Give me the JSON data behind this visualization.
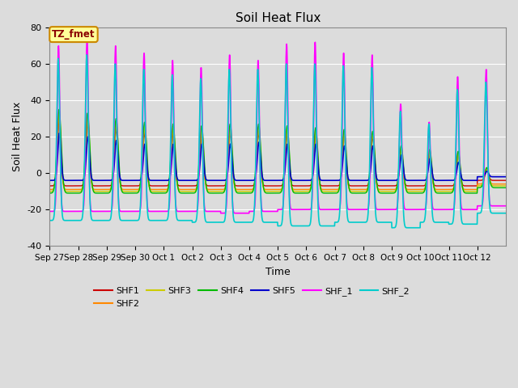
{
  "title": "Soil Heat Flux",
  "xlabel": "Time",
  "ylabel": "Soil Heat Flux",
  "ylim": [
    -40,
    80
  ],
  "annotation_text": "TZ_fmet",
  "annotation_bg": "#FFFF99",
  "annotation_border": "#CC8800",
  "plot_bg": "#DCDCDC",
  "series": {
    "SHF1": {
      "color": "#CC0000",
      "lw": 1.0
    },
    "SHF2": {
      "color": "#FF8800",
      "lw": 1.0
    },
    "SHF3": {
      "color": "#CCCC00",
      "lw": 1.0
    },
    "SHF4": {
      "color": "#00BB00",
      "lw": 1.0
    },
    "SHF5": {
      "color": "#0000CC",
      "lw": 1.2
    },
    "SHF_1": {
      "color": "#FF00FF",
      "lw": 1.2
    },
    "SHF_2": {
      "color": "#00CCCC",
      "lw": 1.2
    }
  },
  "tick_labels": [
    "Sep 27",
    "Sep 28",
    "Sep 29",
    "Sep 30",
    "Oct 1",
    "Oct 2",
    "Oct 3",
    "Oct 4",
    "Oct 5",
    "Oct 6",
    "Oct 7",
    "Oct 8",
    "Oct 9",
    "Oct 10",
    "Oct 11",
    "Oct 12"
  ],
  "n_days": 16,
  "pts_per_day": 144,
  "series_params": {
    "SHF1": {
      "peaks": [
        29,
        27,
        24,
        22,
        22,
        20,
        22,
        22,
        22,
        21,
        21,
        20,
        10,
        10,
        10,
        2
      ],
      "troughs": [
        -7,
        -7,
        -7,
        -7,
        -7,
        -7,
        -7,
        -7,
        -7,
        -7,
        -7,
        -7,
        -7,
        -7,
        -7,
        -4
      ],
      "peak_time": 0.33,
      "sigma": 0.06
    },
    "SHF2": {
      "peaks": [
        31,
        29,
        26,
        24,
        23,
        22,
        23,
        23,
        22,
        22,
        21,
        21,
        12,
        11,
        10,
        2
      ],
      "troughs": [
        -9,
        -9,
        -9,
        -9,
        -9,
        -9,
        -9,
        -9,
        -9,
        -9,
        -9,
        -9,
        -9,
        -9,
        -9,
        -6
      ],
      "peak_time": 0.33,
      "sigma": 0.065
    },
    "SHF3": {
      "peaks": [
        33,
        31,
        28,
        26,
        25,
        24,
        24,
        25,
        24,
        24,
        22,
        22,
        13,
        12,
        11,
        3
      ],
      "troughs": [
        -10,
        -10,
        -10,
        -10,
        -10,
        -10,
        -10,
        -10,
        -10,
        -10,
        -10,
        -10,
        -10,
        -10,
        -10,
        -7
      ],
      "peak_time": 0.33,
      "sigma": 0.07
    },
    "SHF4": {
      "peaks": [
        35,
        33,
        30,
        28,
        27,
        26,
        27,
        27,
        26,
        25,
        24,
        23,
        15,
        13,
        12,
        3
      ],
      "troughs": [
        -11,
        -11,
        -11,
        -11,
        -11,
        -11,
        -11,
        -11,
        -11,
        -11,
        -11,
        -11,
        -11,
        -11,
        -11,
        -8
      ],
      "peak_time": 0.33,
      "sigma": 0.075
    },
    "SHF5": {
      "peaks": [
        22,
        20,
        18,
        16,
        16,
        16,
        16,
        17,
        16,
        16,
        15,
        15,
        10,
        8,
        6,
        1
      ],
      "troughs": [
        -4,
        -4,
        -4,
        -4,
        -4,
        -4,
        -4,
        -4,
        -4,
        -4,
        -4,
        -4,
        -4,
        -4,
        -4,
        -2
      ],
      "peak_time": 0.34,
      "sigma": 0.055
    },
    "SHF_1": {
      "peaks": [
        70,
        75,
        70,
        66,
        62,
        58,
        65,
        62,
        71,
        72,
        66,
        65,
        38,
        28,
        53,
        57
      ],
      "troughs": [
        -21,
        -21,
        -21,
        -21,
        -21,
        -21,
        -22,
        -21,
        -20,
        -20,
        -20,
        -20,
        -20,
        -20,
        -20,
        -18
      ],
      "peak_time": 0.31,
      "sigma": 0.045
    },
    "SHF_2": {
      "peaks": [
        63,
        65,
        60,
        57,
        54,
        52,
        57,
        57,
        60,
        60,
        59,
        58,
        34,
        27,
        46,
        50
      ],
      "troughs": [
        -26,
        -26,
        -26,
        -26,
        -26,
        -27,
        -27,
        -27,
        -29,
        -29,
        -27,
        -27,
        -30,
        -27,
        -28,
        -22
      ],
      "peak_time": 0.3,
      "sigma": 0.055
    }
  },
  "legend_order": [
    "SHF1",
    "SHF2",
    "SHF3",
    "SHF4",
    "SHF5",
    "SHF_1",
    "SHF_2"
  ]
}
